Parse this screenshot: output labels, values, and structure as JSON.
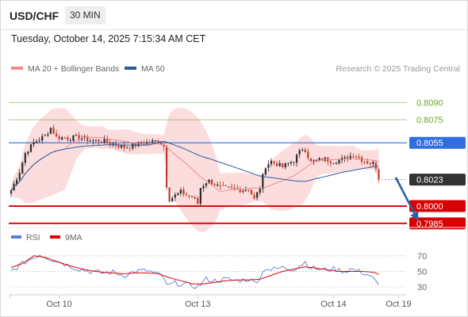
{
  "header": {
    "symbol": "USD/CHF",
    "timeframe": "30 MIN"
  },
  "datetime": "Tuesday, October 14, 2025 7:15:34 AM CET",
  "legend_main": [
    {
      "label": "MA 20 + Bollinger Bands",
      "color": "#f08c8c"
    },
    {
      "label": "MA 50",
      "color": "#2a5b9c"
    }
  ],
  "legend_rsi": [
    {
      "label": "RSI",
      "color": "#5b7fd6"
    },
    {
      "label": "9MA",
      "color": "#e00000"
    }
  ],
  "credit": "Research © 2025 Trading Central",
  "colors": {
    "up": "#2b2b2b",
    "down": "#c0392b",
    "band_fill": "#fbd7d7",
    "ma20": "#f08c8c",
    "ma50": "#2a5b9c",
    "target_green": "#6aa520",
    "pivot_blue": "#2f6fe0",
    "support_red": "#d80000",
    "current_box": "#333333",
    "arrow": "#2a5fa8"
  },
  "chart_data": {
    "type": "candlestick",
    "ylim": [
      0.79835,
      0.8113
    ],
    "x_tick_labels": [
      {
        "label": "Oct 10",
        "index": 17
      },
      {
        "label": "Oct 13",
        "index": 66
      },
      {
        "label": "Oct 14",
        "index": 114
      },
      {
        "label": "Oct 19",
        "index": 137
      }
    ],
    "levels": [
      {
        "value": 0.809,
        "label": "0.8090",
        "kind": "target"
      },
      {
        "value": 0.8075,
        "label": "0.8075",
        "kind": "target"
      },
      {
        "value": 0.8055,
        "label": "0.8055",
        "kind": "pivot"
      },
      {
        "value": 0.8023,
        "label": "0.8023",
        "kind": "current"
      },
      {
        "value": 0.8,
        "label": "0.8000",
        "kind": "support"
      },
      {
        "value": 0.7985,
        "label": "0.7985",
        "kind": "support"
      }
    ],
    "forecast_arrow": {
      "from_index": 136,
      "from_value": 0.8025,
      "to_index": 144,
      "to_value": 0.7987
    },
    "close_anchors": [
      [
        0,
        0.8014
      ],
      [
        3,
        0.803
      ],
      [
        5,
        0.8046
      ],
      [
        8,
        0.8055
      ],
      [
        12,
        0.8061
      ],
      [
        14,
        0.8068
      ],
      [
        16,
        0.806
      ],
      [
        20,
        0.8059
      ],
      [
        24,
        0.806
      ],
      [
        28,
        0.8057
      ],
      [
        32,
        0.8057
      ],
      [
        36,
        0.8054
      ],
      [
        40,
        0.8051
      ],
      [
        44,
        0.8053
      ],
      [
        48,
        0.8055
      ],
      [
        52,
        0.8057
      ],
      [
        54,
        0.8052
      ],
      [
        55,
        0.8018
      ],
      [
        56,
        0.8006
      ],
      [
        60,
        0.8012
      ],
      [
        64,
        0.8008
      ],
      [
        66,
        0.8002
      ],
      [
        67,
        0.8016
      ],
      [
        69,
        0.8021
      ],
      [
        70,
        0.8022
      ],
      [
        74,
        0.8016
      ],
      [
        78,
        0.8015
      ],
      [
        82,
        0.8014
      ],
      [
        84,
        0.8015
      ],
      [
        86,
        0.8006
      ],
      [
        88,
        0.8016
      ],
      [
        90,
        0.8035
      ],
      [
        92,
        0.8039
      ],
      [
        96,
        0.8034
      ],
      [
        100,
        0.804
      ],
      [
        103,
        0.805
      ],
      [
        104,
        0.8049
      ],
      [
        106,
        0.8038
      ],
      [
        110,
        0.8041
      ],
      [
        114,
        0.8039
      ],
      [
        118,
        0.8041
      ],
      [
        121,
        0.8045
      ],
      [
        125,
        0.8039
      ],
      [
        128,
        0.8037
      ],
      [
        129,
        0.8034
      ],
      [
        130,
        0.8023
      ]
    ],
    "rsi": {
      "ylim": [
        25,
        80
      ],
      "y_ticks": [
        70,
        50,
        30
      ],
      "rsi_anchors": [
        [
          0,
          50
        ],
        [
          4,
          60
        ],
        [
          8,
          68
        ],
        [
          10,
          72
        ],
        [
          14,
          66
        ],
        [
          16,
          64
        ],
        [
          20,
          58
        ],
        [
          24,
          53
        ],
        [
          28,
          50
        ],
        [
          32,
          48
        ],
        [
          36,
          49
        ],
        [
          40,
          45
        ],
        [
          44,
          50
        ],
        [
          48,
          51
        ],
        [
          52,
          46
        ],
        [
          54,
          42
        ],
        [
          55,
          31
        ],
        [
          58,
          35
        ],
        [
          62,
          33
        ],
        [
          66,
          30
        ],
        [
          69,
          40
        ],
        [
          72,
          38
        ],
        [
          76,
          40
        ],
        [
          80,
          38
        ],
        [
          84,
          40
        ],
        [
          86,
          36
        ],
        [
          88,
          42
        ],
        [
          90,
          55
        ],
        [
          92,
          52
        ],
        [
          96,
          55
        ],
        [
          100,
          53
        ],
        [
          104,
          62
        ],
        [
          106,
          55
        ],
        [
          110,
          52
        ],
        [
          114,
          53
        ],
        [
          118,
          50
        ],
        [
          120,
          53
        ],
        [
          124,
          49
        ],
        [
          128,
          43
        ],
        [
          130,
          33
        ],
        [
          131,
          33
        ]
      ],
      "ma_anchors": [
        [
          0,
          55
        ],
        [
          4,
          60
        ],
        [
          8,
          70
        ],
        [
          12,
          68
        ],
        [
          16,
          63
        ],
        [
          20,
          58
        ],
        [
          24,
          54
        ],
        [
          28,
          51
        ],
        [
          32,
          49
        ],
        [
          36,
          48
        ],
        [
          40,
          47
        ],
        [
          44,
          48
        ],
        [
          48,
          48
        ],
        [
          52,
          47
        ],
        [
          56,
          42
        ],
        [
          60,
          38
        ],
        [
          64,
          34
        ],
        [
          68,
          34
        ],
        [
          72,
          36
        ],
        [
          76,
          38
        ],
        [
          80,
          39
        ],
        [
          84,
          39
        ],
        [
          88,
          40
        ],
        [
          92,
          45
        ],
        [
          96,
          50
        ],
        [
          100,
          53
        ],
        [
          104,
          56
        ],
        [
          108,
          54
        ],
        [
          112,
          52
        ],
        [
          116,
          50
        ],
        [
          120,
          50
        ],
        [
          124,
          50
        ],
        [
          128,
          49
        ],
        [
          131,
          45
        ]
      ]
    }
  }
}
